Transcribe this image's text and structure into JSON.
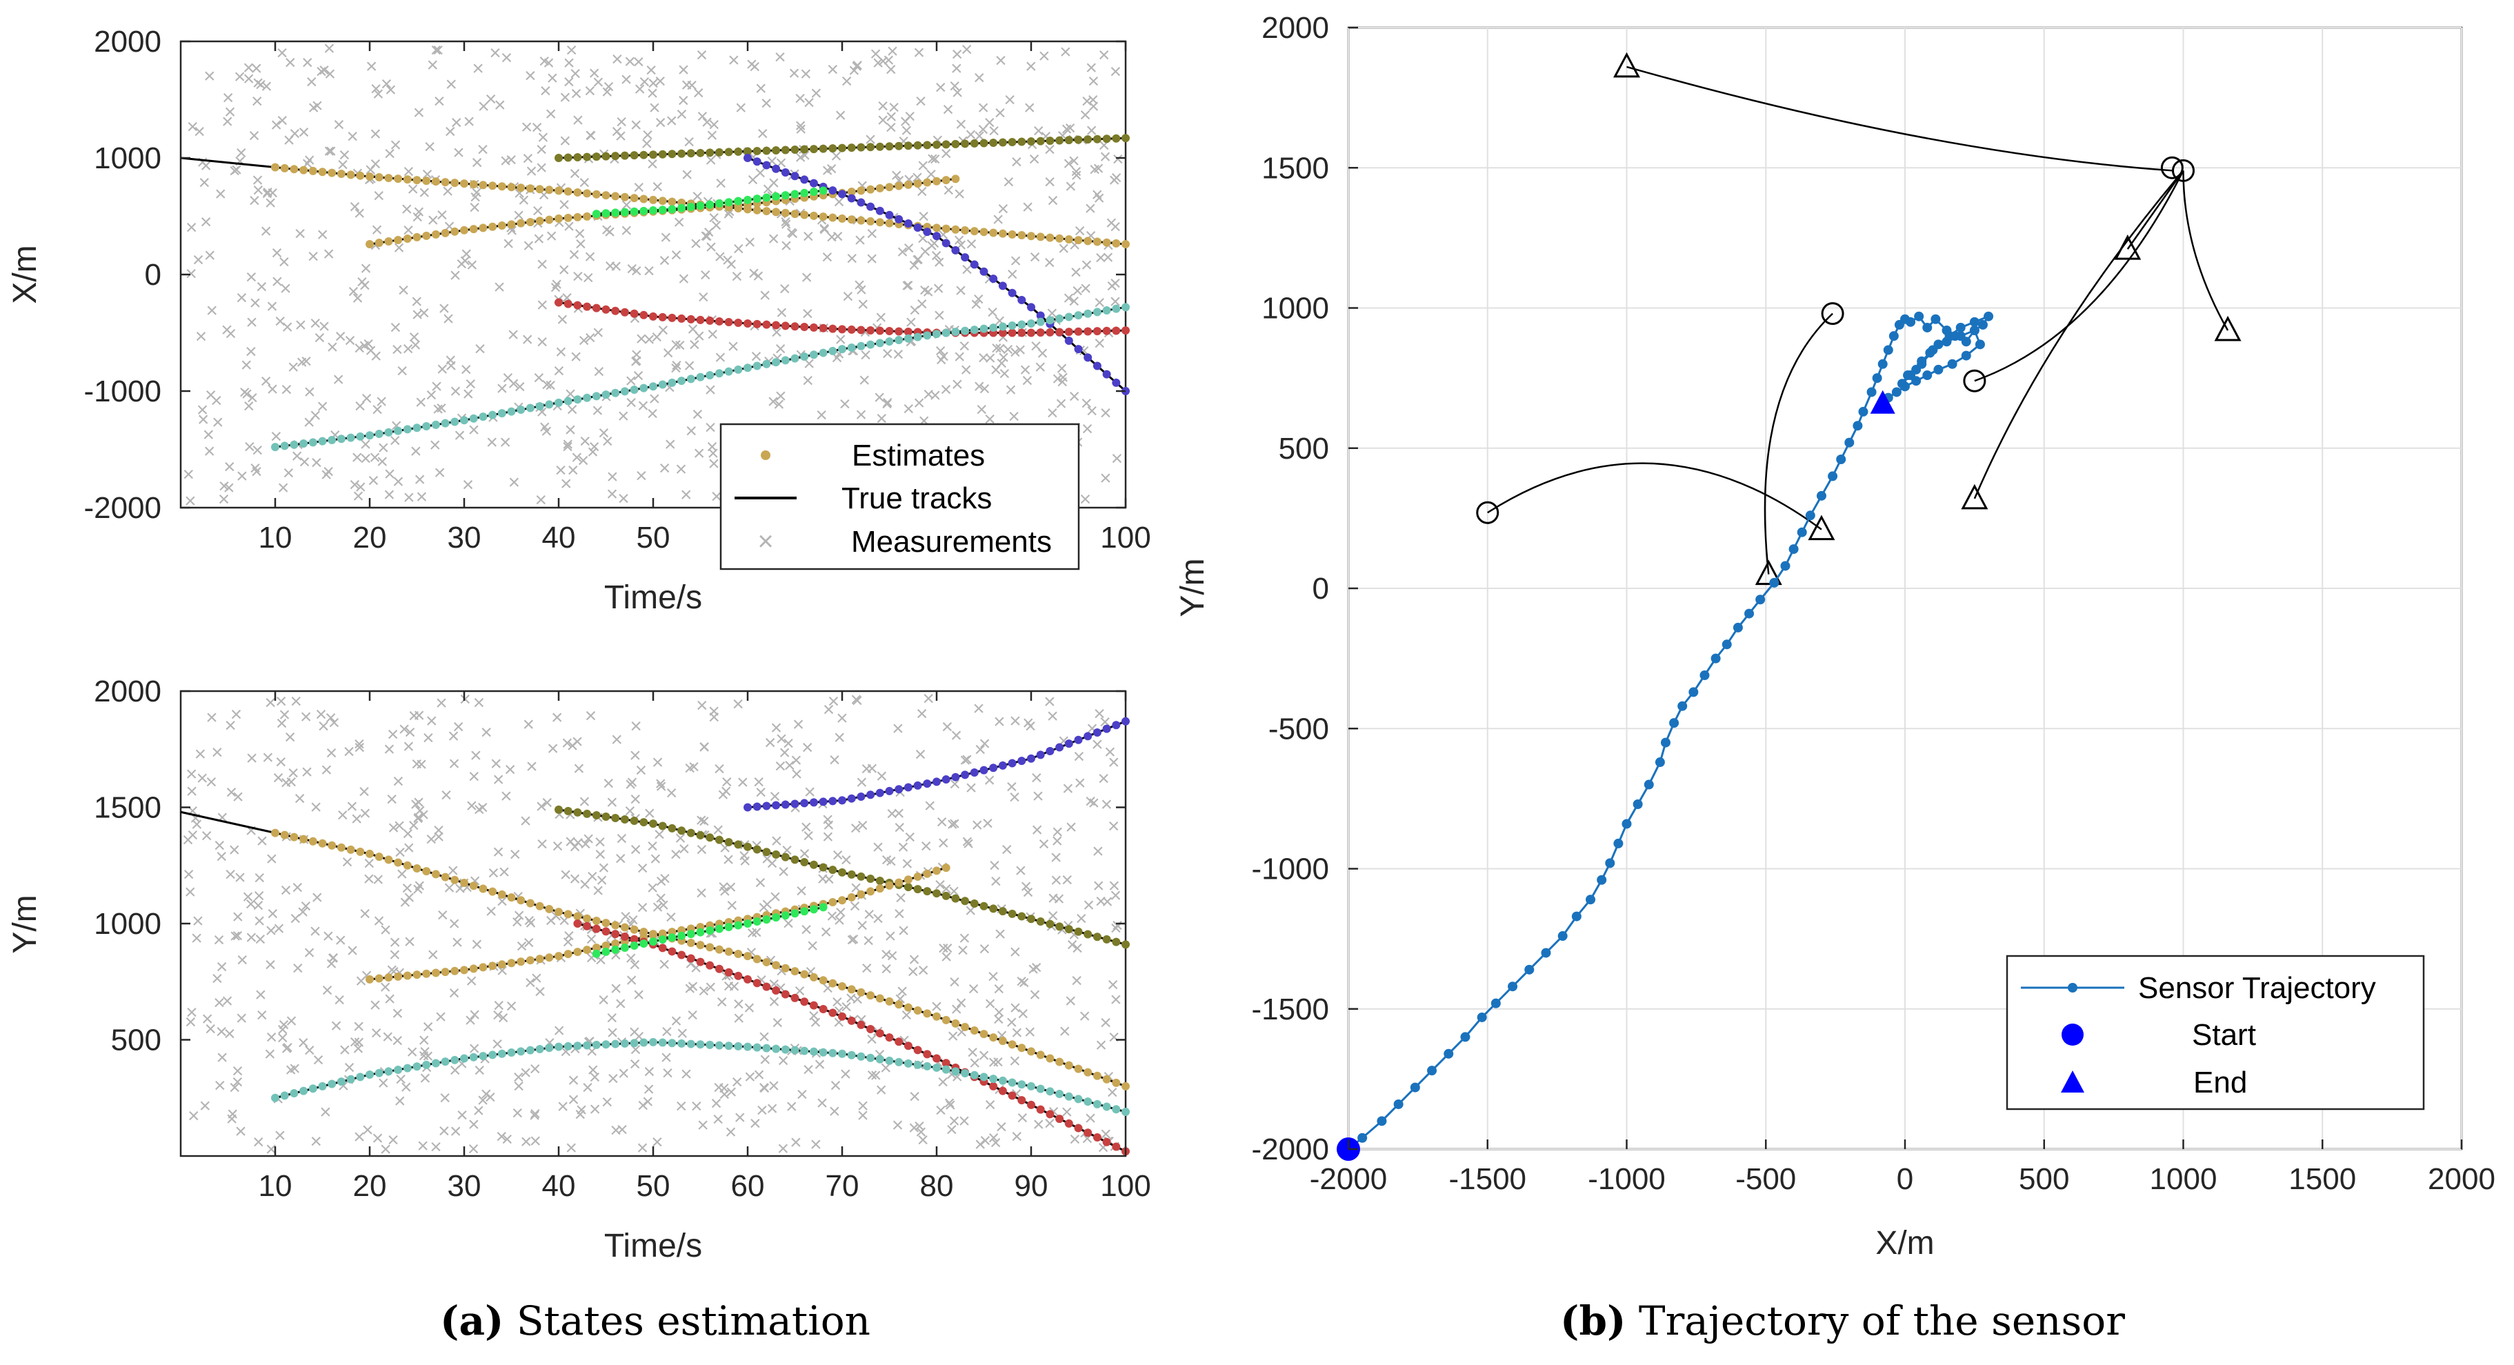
{
  "colors": {
    "measurement": "#b4b4b4",
    "true_track": "#000000",
    "estimate": "#c8a653",
    "track_olive": "#7a7a28",
    "track_blue": "#4b3fc8",
    "track_red": "#c84040",
    "track_teal": "#72c2b8",
    "track_green": "#2ee85a",
    "sensor": "#1a72bd",
    "start_end": "#0000ff",
    "grid": "#e0e0e0"
  },
  "captions": [
    {
      "label": "(a)",
      "text": " States estimation"
    },
    {
      "label": "(b)",
      "text": " Trajectory of the sensor"
    }
  ],
  "chart_data": [
    {
      "id": "a-top",
      "type": "scatter",
      "title": "",
      "xlabel": "Time/s",
      "ylabel": "X/m",
      "xlim": [
        0,
        100
      ],
      "ylim": [
        -2000,
        2000
      ],
      "xticks": [
        10,
        20,
        30,
        40,
        50,
        60,
        70,
        80,
        90,
        100
      ],
      "yticks": [
        -2000,
        -1000,
        0,
        1000,
        2000
      ],
      "legend": {
        "position": "bottom-right",
        "entries": [
          "Estimates",
          "True tracks",
          "Measurements"
        ]
      },
      "tracks": [
        {
          "name": "track-1",
          "color": "track_olive",
          "t": [
            40,
            100
          ],
          "v": [
            1000,
            1170
          ]
        },
        {
          "name": "track-2",
          "color": "estimate",
          "t": [
            0,
            20,
            40,
            60,
            80,
            100
          ],
          "v": [
            1000,
            840,
            720,
            560,
            400,
            260
          ]
        },
        {
          "name": "track-3",
          "color": "estimate",
          "t": [
            20,
            30,
            40,
            50,
            60,
            70,
            82
          ],
          "v": [
            260,
            380,
            480,
            540,
            600,
            700,
            820
          ]
        },
        {
          "name": "track-4",
          "color": "track_blue",
          "t": [
            60,
            70,
            80,
            90,
            100
          ],
          "v": [
            1000,
            690,
            330,
            -280,
            -1000
          ]
        },
        {
          "name": "track-5",
          "color": "track_red",
          "t": [
            40,
            50,
            60,
            70,
            80,
            90,
            100
          ],
          "v": [
            -240,
            -360,
            -420,
            -470,
            -500,
            -500,
            -480
          ]
        },
        {
          "name": "track-6",
          "color": "track_teal",
          "t": [
            10,
            20,
            30,
            40,
            50,
            60,
            70,
            80,
            90,
            100
          ],
          "v": [
            -1480,
            -1380,
            -1250,
            -1100,
            -960,
            -800,
            -640,
            -510,
            -420,
            -280
          ]
        },
        {
          "name": "crossing",
          "color": "track_green",
          "t": [
            44,
            52,
            60,
            68
          ],
          "v": [
            520,
            560,
            640,
            720
          ]
        }
      ]
    },
    {
      "id": "a-bottom",
      "type": "scatter",
      "title": "",
      "xlabel": "Time/s",
      "ylabel": "Y/m",
      "xlim": [
        0,
        100
      ],
      "ylim": [
        0,
        2000
      ],
      "xticks": [
        10,
        20,
        30,
        40,
        50,
        60,
        70,
        80,
        90,
        100
      ],
      "yticks": [
        500,
        1000,
        1500,
        2000
      ],
      "tracks": [
        {
          "name": "track-1",
          "color": "track_olive",
          "t": [
            40,
            50,
            60,
            70,
            80,
            90,
            100
          ],
          "v": [
            1490,
            1430,
            1330,
            1220,
            1130,
            1020,
            910
          ]
        },
        {
          "name": "track-2",
          "color": "estimate",
          "t": [
            0,
            20,
            40,
            60,
            80,
            100
          ],
          "v": [
            1480,
            1300,
            1050,
            860,
            600,
            300
          ]
        },
        {
          "name": "track-3",
          "color": "estimate",
          "t": [
            20,
            30,
            40,
            50,
            60,
            70,
            81
          ],
          "v": [
            760,
            800,
            860,
            950,
            1020,
            1100,
            1240
          ]
        },
        {
          "name": "track-4",
          "color": "track_blue",
          "t": [
            60,
            70,
            80,
            90,
            100
          ],
          "v": [
            1500,
            1530,
            1610,
            1710,
            1870
          ]
        },
        {
          "name": "track-5",
          "color": "track_red",
          "t": [
            42,
            50,
            60,
            70,
            80,
            90,
            100
          ],
          "v": [
            1000,
            910,
            760,
            600,
            420,
            220,
            20
          ]
        },
        {
          "name": "track-6",
          "color": "track_teal",
          "t": [
            10,
            20,
            30,
            40,
            50,
            60,
            70,
            80,
            90,
            100
          ],
          "v": [
            250,
            350,
            420,
            470,
            490,
            470,
            440,
            380,
            300,
            190
          ]
        },
        {
          "name": "crossing",
          "color": "track_green",
          "t": [
            44,
            52,
            60,
            68
          ],
          "v": [
            870,
            940,
            1000,
            1070
          ]
        }
      ]
    },
    {
      "id": "b",
      "type": "line",
      "title": "",
      "xlabel": "X/m",
      "ylabel": "Y/m",
      "xlim": [
        -2000,
        2000
      ],
      "ylim": [
        -2000,
        2000
      ],
      "xticks": [
        -2000,
        -1500,
        -1000,
        -500,
        0,
        500,
        1000,
        1500,
        2000
      ],
      "yticks": [
        -2000,
        -1500,
        -1000,
        -500,
        0,
        500,
        1000,
        1500,
        2000
      ],
      "grid": true,
      "legend": {
        "position": "bottom-right",
        "entries": [
          "Sensor Trajectory",
          "Start",
          "End"
        ]
      },
      "sensor_trajectory": {
        "x": [
          -2000,
          -1950,
          -1880,
          -1820,
          -1760,
          -1700,
          -1640,
          -1580,
          -1520,
          -1470,
          -1410,
          -1350,
          -1290,
          -1230,
          -1180,
          -1130,
          -1090,
          -1060,
          -1030,
          -1000,
          -960,
          -920,
          -880,
          -860,
          -830,
          -800,
          -760,
          -720,
          -680,
          -640,
          -600,
          -560,
          -520,
          -470,
          -430,
          -400,
          -370,
          -340,
          -300,
          -260,
          -230,
          -200,
          -170,
          -150,
          -120,
          -100,
          -80,
          -60,
          -40,
          -20,
          0,
          20,
          50,
          80,
          110,
          150,
          180,
          220,
          250,
          280,
          300,
          250,
          200,
          160,
          120,
          90,
          60,
          40,
          10,
          -10,
          20,
          60,
          100,
          150,
          200,
          250,
          270,
          220,
          170,
          120,
          80,
          40,
          0,
          -30,
          -60,
          -80
        ],
        "y": [
          -2000,
          -1960,
          -1900,
          -1840,
          -1780,
          -1720,
          -1660,
          -1600,
          -1530,
          -1480,
          -1420,
          -1360,
          -1300,
          -1240,
          -1170,
          -1110,
          -1040,
          -980,
          -910,
          -840,
          -770,
          -700,
          -620,
          -550,
          -480,
          -420,
          -370,
          -310,
          -250,
          -200,
          -140,
          -90,
          -40,
          20,
          80,
          140,
          200,
          260,
          330,
          400,
          460,
          520,
          580,
          630,
          700,
          750,
          800,
          850,
          900,
          940,
          960,
          950,
          970,
          930,
          960,
          920,
          900,
          880,
          920,
          940,
          970,
          950,
          930,
          900,
          870,
          840,
          810,
          780,
          760,
          730,
          760,
          800,
          850,
          880,
          900,
          920,
          870,
          830,
          800,
          780,
          760,
          740,
          720,
          700,
          680,
          660
        ]
      },
      "start": {
        "x": -2000,
        "y": -2000
      },
      "end": {
        "x": -80,
        "y": 660
      },
      "target_tracks": [
        {
          "from": {
            "x": 960,
            "y": 1490
          },
          "to": {
            "x": -1000,
            "y": 1860
          },
          "ctrl": {
            "x": 100,
            "y": 1550
          }
        },
        {
          "from": {
            "x": 1000,
            "y": 1490
          },
          "to": {
            "x": 1160,
            "y": 920
          },
          "ctrl": {
            "x": 1000,
            "y": 1200
          }
        },
        {
          "from": {
            "x": 1000,
            "y": 1490
          },
          "to": {
            "x": 800,
            "y": 1210
          },
          "ctrl": {
            "x": 900,
            "y": 1350
          }
        },
        {
          "from": {
            "x": 1000,
            "y": 1490
          },
          "to": {
            "x": 250,
            "y": 320
          },
          "ctrl": {
            "x": 500,
            "y": 900
          }
        },
        {
          "from": {
            "x": 250,
            "y": 740
          },
          "to": {
            "x": 1000,
            "y": 1490
          },
          "ctrl": {
            "x": 700,
            "y": 900
          }
        },
        {
          "from": {
            "x": -1500,
            "y": 270
          },
          "to": {
            "x": -300,
            "y": 210
          },
          "ctrl": {
            "x": -900,
            "y": 650
          }
        },
        {
          "from": {
            "x": -260,
            "y": 980
          },
          "to": {
            "x": -490,
            "y": 50
          },
          "ctrl": {
            "x": -560,
            "y": 700
          }
        }
      ],
      "starts_circle": [
        {
          "x": 960,
          "y": 1500
        },
        {
          "x": 1000,
          "y": 1490
        },
        {
          "x": 250,
          "y": 740
        },
        {
          "x": -1500,
          "y": 270
        },
        {
          "x": -260,
          "y": 980
        }
      ],
      "ends_triangle": [
        {
          "x": -1000,
          "y": 1860
        },
        {
          "x": 1160,
          "y": 920
        },
        {
          "x": 800,
          "y": 1210
        },
        {
          "x": 250,
          "y": 320
        },
        {
          "x": -300,
          "y": 210
        },
        {
          "x": -490,
          "y": 50
        }
      ]
    }
  ]
}
